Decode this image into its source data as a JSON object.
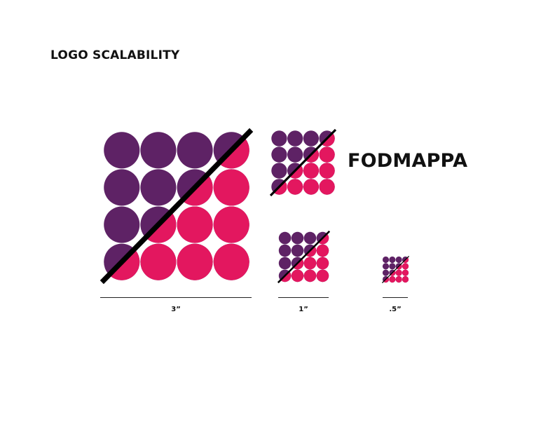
{
  "page": {
    "title": "LOGO SCALABILITY"
  },
  "brand": {
    "wordmark": "FODMAPPA",
    "colors": {
      "purple": "#5e2265",
      "pink": "#e3175f",
      "slash": "#000000"
    }
  },
  "logo_grid": {
    "rows": 4,
    "cols": 4
  },
  "scales": [
    {
      "label": "3”"
    },
    {
      "label": "1”"
    },
    {
      "label": ".5”"
    }
  ]
}
